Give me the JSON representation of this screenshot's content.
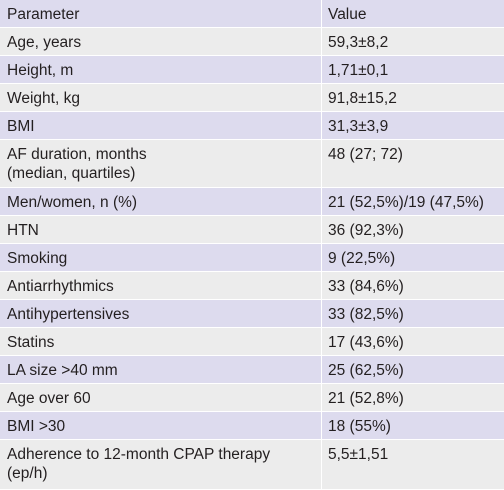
{
  "header": {
    "parameter": "Parameter",
    "value": "Value"
  },
  "rows": [
    {
      "parameter": "Age, years",
      "value": "59,3±8,2"
    },
    {
      "parameter": "Height, m",
      "value": "1,71±0,1"
    },
    {
      "parameter": "Weight, kg",
      "value": "91,8±15,2"
    },
    {
      "parameter": "BMI",
      "value": "31,3±3,9"
    },
    {
      "parameter": "AF duration, months\n(median, quartiles)",
      "value": "48 (27; 72)"
    },
    {
      "parameter": "Men/women, n (%)",
      "value": "21 (52,5%)/19 (47,5%)"
    },
    {
      "parameter": "HTN",
      "value": "36 (92,3%)"
    },
    {
      "parameter": "Smoking",
      "value": "9 (22,5%)"
    },
    {
      "parameter": "Antiarrhythmics",
      "value": "33 (84,6%)"
    },
    {
      "parameter": "Antihypertensives",
      "value": "33 (82,5%)"
    },
    {
      "parameter": "Statins",
      "value": "17 (43,6%)"
    },
    {
      "parameter": "LA size >40 mm",
      "value": "25 (62,5%)"
    },
    {
      "parameter": "Age over 60",
      "value": "21 (52,8%)"
    },
    {
      "parameter": "BMI >30",
      "value": "18 (55%)"
    },
    {
      "parameter": "Adherence to 12-month CPAP therapy\n(ep/h)",
      "value": "5,5±1,51"
    }
  ]
}
